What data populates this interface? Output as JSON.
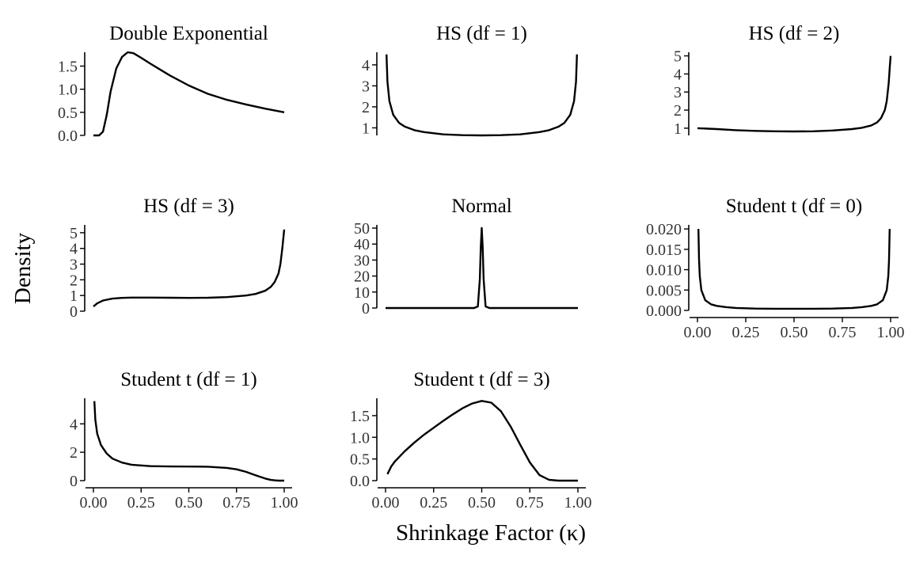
{
  "figure": {
    "xlabel": "Shrinkage Factor (κ)",
    "ylabel": "Density"
  },
  "chart_data": [
    {
      "type": "line",
      "title": "Double Exponential",
      "xlim": [
        0,
        1
      ],
      "ylim": [
        0,
        1.8
      ],
      "yticks": [
        0,
        0.5,
        1,
        1.5
      ],
      "yticklabels": [
        "0.0",
        "0.5",
        "1.0",
        "1.5"
      ],
      "x_tick_labels_shown": false,
      "x": [
        0,
        0.03,
        0.05,
        0.07,
        0.09,
        0.12,
        0.15,
        0.18,
        0.21,
        0.25,
        0.3,
        0.4,
        0.5,
        0.6,
        0.7,
        0.8,
        0.9,
        1.0
      ],
      "y": [
        0.0,
        0.0,
        0.08,
        0.45,
        0.95,
        1.45,
        1.7,
        1.8,
        1.78,
        1.68,
        1.55,
        1.3,
        1.08,
        0.9,
        0.77,
        0.67,
        0.58,
        0.5
      ]
    },
    {
      "type": "line",
      "title": "HS (df = 1)",
      "xlim": [
        0,
        1
      ],
      "ylim": [
        0.64,
        4.6
      ],
      "yticks": [
        1,
        2,
        3,
        4
      ],
      "yticklabels": [
        "1",
        "2",
        "3",
        "4"
      ],
      "x_tick_labels_shown": false,
      "x": [
        0.005,
        0.01,
        0.02,
        0.04,
        0.07,
        0.1,
        0.15,
        0.2,
        0.3,
        0.4,
        0.5,
        0.6,
        0.7,
        0.8,
        0.85,
        0.9,
        0.93,
        0.96,
        0.98,
        0.99,
        0.995
      ],
      "y": [
        4.5,
        3.2,
        2.27,
        1.62,
        1.24,
        1.06,
        0.89,
        0.8,
        0.69,
        0.65,
        0.64,
        0.65,
        0.69,
        0.8,
        0.89,
        1.06,
        1.24,
        1.62,
        2.27,
        3.2,
        4.5
      ]
    },
    {
      "type": "line",
      "title": "HS (df = 2)",
      "xlim": [
        0,
        1
      ],
      "ylim": [
        0.6,
        5.2
      ],
      "yticks": [
        1,
        2,
        3,
        4,
        5
      ],
      "yticklabels": [
        "1",
        "2",
        "3",
        "4",
        "5"
      ],
      "x_tick_labels_shown": false,
      "x": [
        0,
        0.1,
        0.2,
        0.3,
        0.4,
        0.5,
        0.6,
        0.7,
        0.8,
        0.85,
        0.9,
        0.93,
        0.95,
        0.97,
        0.98,
        0.99,
        0.995,
        1.0
      ],
      "y": [
        1.0,
        0.95,
        0.89,
        0.85,
        0.83,
        0.82,
        0.83,
        0.87,
        0.95,
        1.02,
        1.15,
        1.32,
        1.55,
        2.0,
        2.5,
        3.5,
        4.3,
        5.0
      ]
    },
    {
      "type": "line",
      "title": "HS (df = 3)",
      "xlim": [
        0,
        1
      ],
      "ylim": [
        0,
        5.5
      ],
      "yticks": [
        0,
        1,
        2,
        3,
        4,
        5
      ],
      "yticklabels": [
        "0",
        "1",
        "2",
        "3",
        "4",
        "5"
      ],
      "x_tick_labels_shown": false,
      "x": [
        0,
        0.02,
        0.05,
        0.1,
        0.15,
        0.2,
        0.3,
        0.4,
        0.5,
        0.6,
        0.7,
        0.8,
        0.85,
        0.9,
        0.93,
        0.95,
        0.97,
        0.98,
        0.99,
        1.0
      ],
      "y": [
        0.3,
        0.5,
        0.68,
        0.8,
        0.85,
        0.87,
        0.87,
        0.86,
        0.85,
        0.86,
        0.9,
        1.0,
        1.1,
        1.3,
        1.55,
        1.85,
        2.4,
        3.0,
        4.0,
        5.2
      ]
    },
    {
      "type": "line",
      "title": "Normal",
      "xlim": [
        0,
        1
      ],
      "ylim": [
        0,
        52
      ],
      "yticks": [
        0,
        10,
        20,
        30,
        40,
        50
      ],
      "yticklabels": [
        "0",
        "10",
        "20",
        "30",
        "40",
        "50"
      ],
      "x_tick_labels_shown": false,
      "x": [
        0,
        0.46,
        0.48,
        0.49,
        0.495,
        0.5,
        0.505,
        0.51,
        0.52,
        0.54,
        1.0
      ],
      "y": [
        0,
        0,
        1,
        18,
        38,
        50,
        38,
        18,
        1,
        0,
        0
      ]
    },
    {
      "type": "line",
      "title": "Student t (df = 0)",
      "xlim": [
        0,
        1
      ],
      "ylim": [
        0,
        0.021
      ],
      "yticks": [
        0,
        0.005,
        0.01,
        0.015,
        0.02
      ],
      "yticklabels": [
        "0.000",
        "0.005",
        "0.010",
        "0.015",
        "0.020"
      ],
      "xticks": [
        0,
        0.25,
        0.5,
        0.75,
        1
      ],
      "xticklabels": [
        "0.00",
        "0.25",
        "0.50",
        "0.75",
        "1.00"
      ],
      "x_tick_labels_shown": true,
      "x": [
        0.005,
        0.008,
        0.012,
        0.02,
        0.04,
        0.07,
        0.1,
        0.15,
        0.2,
        0.3,
        0.4,
        0.5,
        0.6,
        0.7,
        0.8,
        0.85,
        0.9,
        0.93,
        0.96,
        0.98,
        0.988,
        0.992,
        0.995
      ],
      "y": [
        0.02,
        0.0125,
        0.0085,
        0.005,
        0.0025,
        0.0015,
        0.0011,
        0.0008,
        0.0006,
        0.00045,
        0.0004,
        0.0004,
        0.0004,
        0.00045,
        0.0006,
        0.0008,
        0.0011,
        0.0015,
        0.0025,
        0.005,
        0.0085,
        0.0125,
        0.02
      ]
    },
    {
      "type": "line",
      "title": "Student t (df = 1)",
      "xlim": [
        0,
        1
      ],
      "ylim": [
        0,
        5.8
      ],
      "yticks": [
        0,
        2,
        4
      ],
      "yticklabels": [
        "0",
        "2",
        "4"
      ],
      "xticks": [
        0,
        0.25,
        0.5,
        0.75,
        1
      ],
      "xticklabels": [
        "0.00",
        "0.25",
        "0.50",
        "0.75",
        "1.00"
      ],
      "x_tick_labels_shown": true,
      "x": [
        0.005,
        0.01,
        0.02,
        0.04,
        0.07,
        0.1,
        0.15,
        0.2,
        0.3,
        0.4,
        0.5,
        0.6,
        0.7,
        0.75,
        0.8,
        0.85,
        0.9,
        0.93,
        0.95,
        0.97,
        1.0
      ],
      "y": [
        5.6,
        4.3,
        3.3,
        2.5,
        1.9,
        1.55,
        1.27,
        1.12,
        1.02,
        1.0,
        0.99,
        0.98,
        0.9,
        0.8,
        0.62,
        0.38,
        0.15,
        0.05,
        0.02,
        0.0,
        0.0
      ]
    },
    {
      "type": "line",
      "title": "Student t (df = 3)",
      "xlim": [
        0,
        1
      ],
      "ylim": [
        0,
        1.9
      ],
      "yticks": [
        0,
        0.5,
        1,
        1.5
      ],
      "yticklabels": [
        "0.0",
        "0.5",
        "1.0",
        "1.5"
      ],
      "xticks": [
        0,
        0.25,
        0.5,
        0.75,
        1
      ],
      "xticklabels": [
        "0.00",
        "0.25",
        "0.50",
        "0.75",
        "1.00"
      ],
      "x_tick_labels_shown": true,
      "x": [
        0.01,
        0.03,
        0.05,
        0.1,
        0.15,
        0.2,
        0.25,
        0.3,
        0.35,
        0.4,
        0.45,
        0.5,
        0.55,
        0.6,
        0.65,
        0.7,
        0.75,
        0.8,
        0.85,
        0.9,
        0.95,
        1.0
      ],
      "y": [
        0.15,
        0.33,
        0.45,
        0.68,
        0.88,
        1.06,
        1.22,
        1.38,
        1.53,
        1.67,
        1.78,
        1.84,
        1.8,
        1.6,
        1.25,
        0.83,
        0.42,
        0.13,
        0.02,
        0.0,
        0.0,
        0.0
      ]
    }
  ]
}
